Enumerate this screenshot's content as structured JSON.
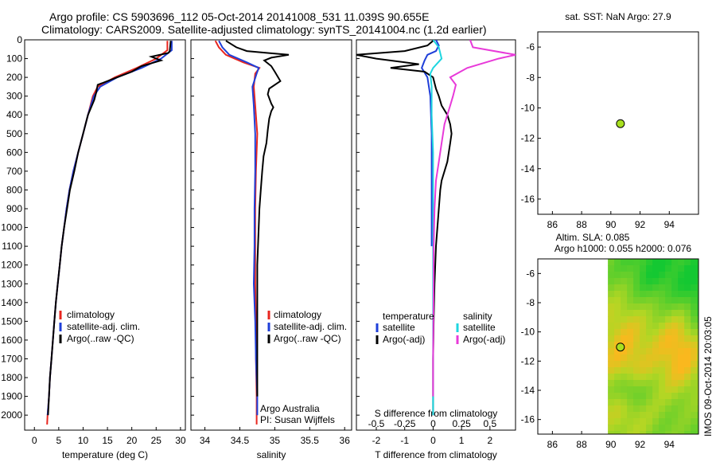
{
  "header": {
    "title_line1": "Argo profile: CS 5903696_112 05-Oct-2014 20141008_531 11.039S 90.655E",
    "title_line2": "Climatology: CARS2009. Satellite-adjusted climatology: synTS_20141004.nc (1.2d earlier)"
  },
  "colors": {
    "climatology": "#e8261f",
    "satellite": "#1f3fd9",
    "argo": "#000000",
    "satellite_salt": "#1fd6e0",
    "argo_salt": "#e83ad9",
    "marker": "#a8e01f"
  },
  "chart_data": [
    {
      "type": "line",
      "name": "temperature",
      "xlabel": "temperature (deg C)",
      "ylabel": "",
      "xlim": [
        -2,
        31
      ],
      "ylim": [
        2080,
        0
      ],
      "xticks": [
        0,
        5,
        10,
        15,
        20,
        25,
        30
      ],
      "yticks": [
        0,
        100,
        200,
        300,
        400,
        500,
        600,
        700,
        800,
        900,
        1000,
        1100,
        1200,
        1300,
        1400,
        1500,
        1600,
        1700,
        1800,
        1900,
        2000
      ],
      "legend": {
        "items": [
          "climatology",
          "satellite-adj. clim.",
          "Argo(..raw -QC)"
        ],
        "placement": "bottom-middle"
      },
      "series": [
        {
          "name": "climatology",
          "color": "#e8261f",
          "points": [
            [
              27.3,
              5
            ],
            [
              27.3,
              55
            ],
            [
              25,
              100
            ],
            [
              21,
              150
            ],
            [
              16.5,
              200
            ],
            [
              13,
              250
            ],
            [
              12,
              300
            ],
            [
              11,
              400
            ],
            [
              10,
              500
            ],
            [
              9,
              600
            ],
            [
              8,
              700
            ],
            [
              7.2,
              800
            ],
            [
              6.6,
              900
            ],
            [
              6.1,
              1000
            ],
            [
              5.6,
              1100
            ],
            [
              5.2,
              1200
            ],
            [
              4.8,
              1300
            ],
            [
              4.4,
              1400
            ],
            [
              4.1,
              1500
            ],
            [
              3.8,
              1600
            ],
            [
              3.5,
              1700
            ],
            [
              3.2,
              1800
            ],
            [
              3,
              1900
            ],
            [
              2.7,
              2000
            ],
            [
              2.6,
              2050
            ]
          ]
        },
        {
          "name": "satellite-adj. clim.",
          "color": "#1f3fd9",
          "points": [
            [
              28.2,
              5
            ],
            [
              28.2,
              55
            ],
            [
              26,
              100
            ],
            [
              22,
              150
            ],
            [
              17,
              200
            ],
            [
              13.5,
              250
            ],
            [
              12.2,
              300
            ],
            [
              11,
              400
            ],
            [
              10,
              500
            ],
            [
              9,
              600
            ],
            [
              8,
              700
            ],
            [
              7.2,
              800
            ],
            [
              6.6,
              900
            ],
            [
              6.1,
              1000
            ],
            [
              5.6,
              1100
            ],
            [
              5.2,
              1200
            ],
            [
              4.8,
              1300
            ],
            [
              4.4,
              1400
            ],
            [
              4.1,
              1500
            ],
            [
              3.8,
              1600
            ],
            [
              3.5,
              1700
            ],
            [
              3.2,
              1800
            ],
            [
              3,
              1900
            ],
            [
              2.7,
              2000
            ]
          ]
        },
        {
          "name": "Argo(..raw -QC)",
          "color": "#000000",
          "points": [
            [
              28,
              5
            ],
            [
              27.8,
              60
            ],
            [
              27.5,
              70
            ],
            [
              24,
              90
            ],
            [
              26,
              110
            ],
            [
              22,
              140
            ],
            [
              20,
              170
            ],
            [
              17,
              200
            ],
            [
              13,
              240
            ],
            [
              12.7,
              280
            ],
            [
              12.3,
              320
            ],
            [
              11,
              400
            ],
            [
              10.5,
              450
            ],
            [
              10,
              500
            ],
            [
              9,
              600
            ],
            [
              8.2,
              700
            ],
            [
              7.3,
              800
            ],
            [
              6.7,
              900
            ],
            [
              6.1,
              1000
            ],
            [
              5.6,
              1100
            ],
            [
              5.2,
              1200
            ],
            [
              4.8,
              1300
            ],
            [
              4.4,
              1400
            ],
            [
              4.1,
              1500
            ],
            [
              3.8,
              1600
            ],
            [
              3.5,
              1700
            ],
            [
              3.2,
              1800
            ],
            [
              3,
              1900
            ],
            [
              2.8,
              2000
            ]
          ]
        }
      ]
    },
    {
      "type": "line",
      "name": "salinity",
      "xlabel": "salinity",
      "xlim": [
        33.8,
        36.1
      ],
      "ylim": [
        2080,
        0
      ],
      "xticks": [
        34,
        34.5,
        35,
        35.5,
        36
      ],
      "legend": {
        "items": [
          "climatology",
          "satellite-adj. clim.",
          "Argo(..raw -QC)"
        ],
        "placement": "bottom-right"
      },
      "annotations": [
        "Argo Australia",
        "PI: Susan Wijffels"
      ],
      "series": [
        {
          "name": "climatology",
          "color": "#e8261f",
          "points": [
            [
              34.15,
              5
            ],
            [
              34.2,
              40
            ],
            [
              34.3,
              80
            ],
            [
              34.55,
              120
            ],
            [
              34.78,
              150
            ],
            [
              34.72,
              180
            ],
            [
              34.7,
              250
            ],
            [
              34.72,
              350
            ],
            [
              34.75,
              500
            ],
            [
              34.73,
              700
            ],
            [
              34.72,
              900
            ],
            [
              34.72,
              1100
            ],
            [
              34.72,
              1300
            ],
            [
              34.73,
              1500
            ],
            [
              34.73,
              1700
            ],
            [
              34.74,
              1900
            ],
            [
              34.74,
              2050
            ]
          ]
        },
        {
          "name": "satellite-adj. clim.",
          "color": "#1f3fd9",
          "points": [
            [
              34.2,
              5
            ],
            [
              34.25,
              40
            ],
            [
              34.35,
              80
            ],
            [
              34.6,
              120
            ],
            [
              34.77,
              150
            ],
            [
              34.74,
              180
            ],
            [
              34.68,
              250
            ],
            [
              34.7,
              350
            ],
            [
              34.72,
              500
            ],
            [
              34.72,
              700
            ],
            [
              34.71,
              900
            ],
            [
              34.71,
              1100
            ],
            [
              34.7,
              1300
            ],
            [
              34.72,
              1500
            ],
            [
              34.73,
              1700
            ],
            [
              34.75,
              1900
            ],
            [
              34.75,
              2000
            ]
          ]
        },
        {
          "name": "Argo(..raw -QC)",
          "color": "#000000",
          "points": [
            [
              34.3,
              5
            ],
            [
              34.45,
              40
            ],
            [
              34.6,
              60
            ],
            [
              34.9,
              70
            ],
            [
              35.2,
              80
            ],
            [
              34.95,
              95
            ],
            [
              34.85,
              110
            ],
            [
              34.95,
              140
            ],
            [
              35.0,
              170
            ],
            [
              35.08,
              220
            ],
            [
              34.92,
              260
            ],
            [
              34.9,
              290
            ],
            [
              34.95,
              340
            ],
            [
              34.98,
              360
            ],
            [
              34.95,
              380
            ],
            [
              34.92,
              420
            ],
            [
              34.9,
              480
            ],
            [
              34.88,
              550
            ],
            [
              34.84,
              620
            ],
            [
              34.82,
              700
            ],
            [
              34.8,
              800
            ],
            [
              34.78,
              900
            ],
            [
              34.77,
              1000
            ],
            [
              34.76,
              1100
            ],
            [
              34.75,
              1200
            ],
            [
              34.75,
              1300
            ],
            [
              34.75,
              1400
            ],
            [
              34.75,
              1500
            ],
            [
              34.75,
              1600
            ],
            [
              34.75,
              1700
            ],
            [
              34.75,
              1800
            ],
            [
              34.75,
              1900
            ]
          ]
        }
      ]
    },
    {
      "type": "line",
      "name": "difference",
      "xlabel": "T difference from climatology",
      "top_axis_label": "S difference from climatology",
      "xlim": [
        -2.7,
        2.9
      ],
      "ylim": [
        2080,
        0
      ],
      "xticks": [
        -2,
        -1,
        0,
        1,
        2
      ],
      "salinity_ticks": [
        "-0.5",
        "-0.25",
        "0",
        "0.25",
        "0.5"
      ],
      "salinity_tick_positions": [
        -2,
        -1,
        0,
        1,
        2
      ],
      "legend": {
        "col1_title": "temperature",
        "col1_items": [
          "satellite",
          "Argo(-adj)"
        ],
        "col2_title": "salinity",
        "col2_items": [
          "satellite",
          "Argo(-adj)"
        ],
        "placement": "bottom"
      },
      "series": [
        {
          "name": "temperature satellite",
          "color": "#1f3fd9",
          "points": [
            [
              0.1,
              0
            ],
            [
              0.2,
              30
            ],
            [
              0.1,
              60
            ],
            [
              -0.2,
              80
            ],
            [
              -0.3,
              110
            ],
            [
              -0.4,
              150
            ],
            [
              -0.2,
              200
            ],
            [
              -0.1,
              300
            ],
            [
              -0.05,
              500
            ],
            [
              -0.05,
              700
            ],
            [
              -0.05,
              900
            ],
            [
              -0.05,
              1100
            ]
          ]
        },
        {
          "name": "temperature Argo(-adj)",
          "color": "#000000",
          "points": [
            [
              0,
              5
            ],
            [
              -0.2,
              30
            ],
            [
              -1,
              60
            ],
            [
              -2.7,
              80
            ],
            [
              -2,
              100
            ],
            [
              -0.5,
              130
            ],
            [
              -1.5,
              150
            ],
            [
              -0.3,
              170
            ],
            [
              0,
              200
            ],
            [
              0.1,
              260
            ],
            [
              0.2,
              300
            ],
            [
              0.3,
              350
            ],
            [
              0.5,
              400
            ],
            [
              0.6,
              450
            ],
            [
              0.65,
              500
            ],
            [
              0.6,
              550
            ],
            [
              0.55,
              600
            ],
            [
              0.5,
              650
            ],
            [
              0.4,
              700
            ],
            [
              0.3,
              750
            ],
            [
              0.25,
              800
            ],
            [
              0.2,
              900
            ],
            [
              0.15,
              1000
            ],
            [
              0.1,
              1100
            ],
            [
              0.05,
              1300
            ],
            [
              0.02,
              1500
            ],
            [
              0,
              1700
            ],
            [
              0,
              2000
            ]
          ]
        },
        {
          "name": "salinity satellite",
          "color": "#1fd6e0",
          "points": [
            [
              0,
              0
            ],
            [
              0.2,
              40
            ],
            [
              0.3,
              100
            ],
            [
              0,
              150
            ],
            [
              -0.1,
              180
            ],
            [
              -0.05,
              250
            ],
            [
              -0.05,
              400
            ],
            [
              0,
              600
            ],
            [
              0,
              800
            ],
            [
              0,
              1000
            ],
            [
              0,
              1200
            ],
            [
              0,
              1400
            ],
            [
              0,
              1600
            ],
            [
              0,
              1800
            ],
            [
              0,
              2000
            ]
          ]
        },
        {
          "name": "salinity Argo(-adj)",
          "color": "#e83ad9",
          "points": [
            [
              1.3,
              0
            ],
            [
              1.4,
              40
            ],
            [
              2.9,
              80
            ],
            [
              2.3,
              100
            ],
            [
              1.2,
              150
            ],
            [
              0.6,
              200
            ],
            [
              0.8,
              240
            ],
            [
              0.7,
              300
            ],
            [
              0.6,
              350
            ],
            [
              0.4,
              450
            ],
            [
              0.3,
              550
            ],
            [
              0.2,
              650
            ],
            [
              0.1,
              750
            ],
            [
              0.05,
              900
            ],
            [
              0.02,
              1100
            ],
            [
              0.02,
              1300
            ],
            [
              0.01,
              1500
            ],
            [
              0,
              1700
            ],
            [
              0,
              1900
            ]
          ]
        }
      ]
    },
    {
      "type": "scatter",
      "name": "sst-map",
      "title": "sat. SST: NaN Argo: 27.9",
      "xlim": [
        85,
        96
      ],
      "ylim": [
        -17,
        -5
      ],
      "xticks": [
        86,
        88,
        90,
        92,
        94
      ],
      "yticks": [
        -6,
        -8,
        -10,
        -12,
        -14,
        -16
      ],
      "points": [
        [
          90.655,
          -11.039
        ]
      ]
    },
    {
      "type": "heatmap",
      "name": "sla-map",
      "title_line1": "Altim. SLA: 0.085",
      "title_line2": "Argo h1000: 0.055 h2000: 0.076",
      "side_label": "IMOS 09-Oct-2014 20:03:05",
      "xlim": [
        85,
        96
      ],
      "ylim": [
        -17,
        -5
      ],
      "xticks": [
        86,
        88,
        90,
        92,
        94
      ],
      "yticks": [
        -6,
        -8,
        -10,
        -12,
        -14,
        -16
      ],
      "data_xrange": [
        89.8,
        96
      ],
      "points": [
        [
          90.655,
          -11.039
        ]
      ]
    }
  ]
}
